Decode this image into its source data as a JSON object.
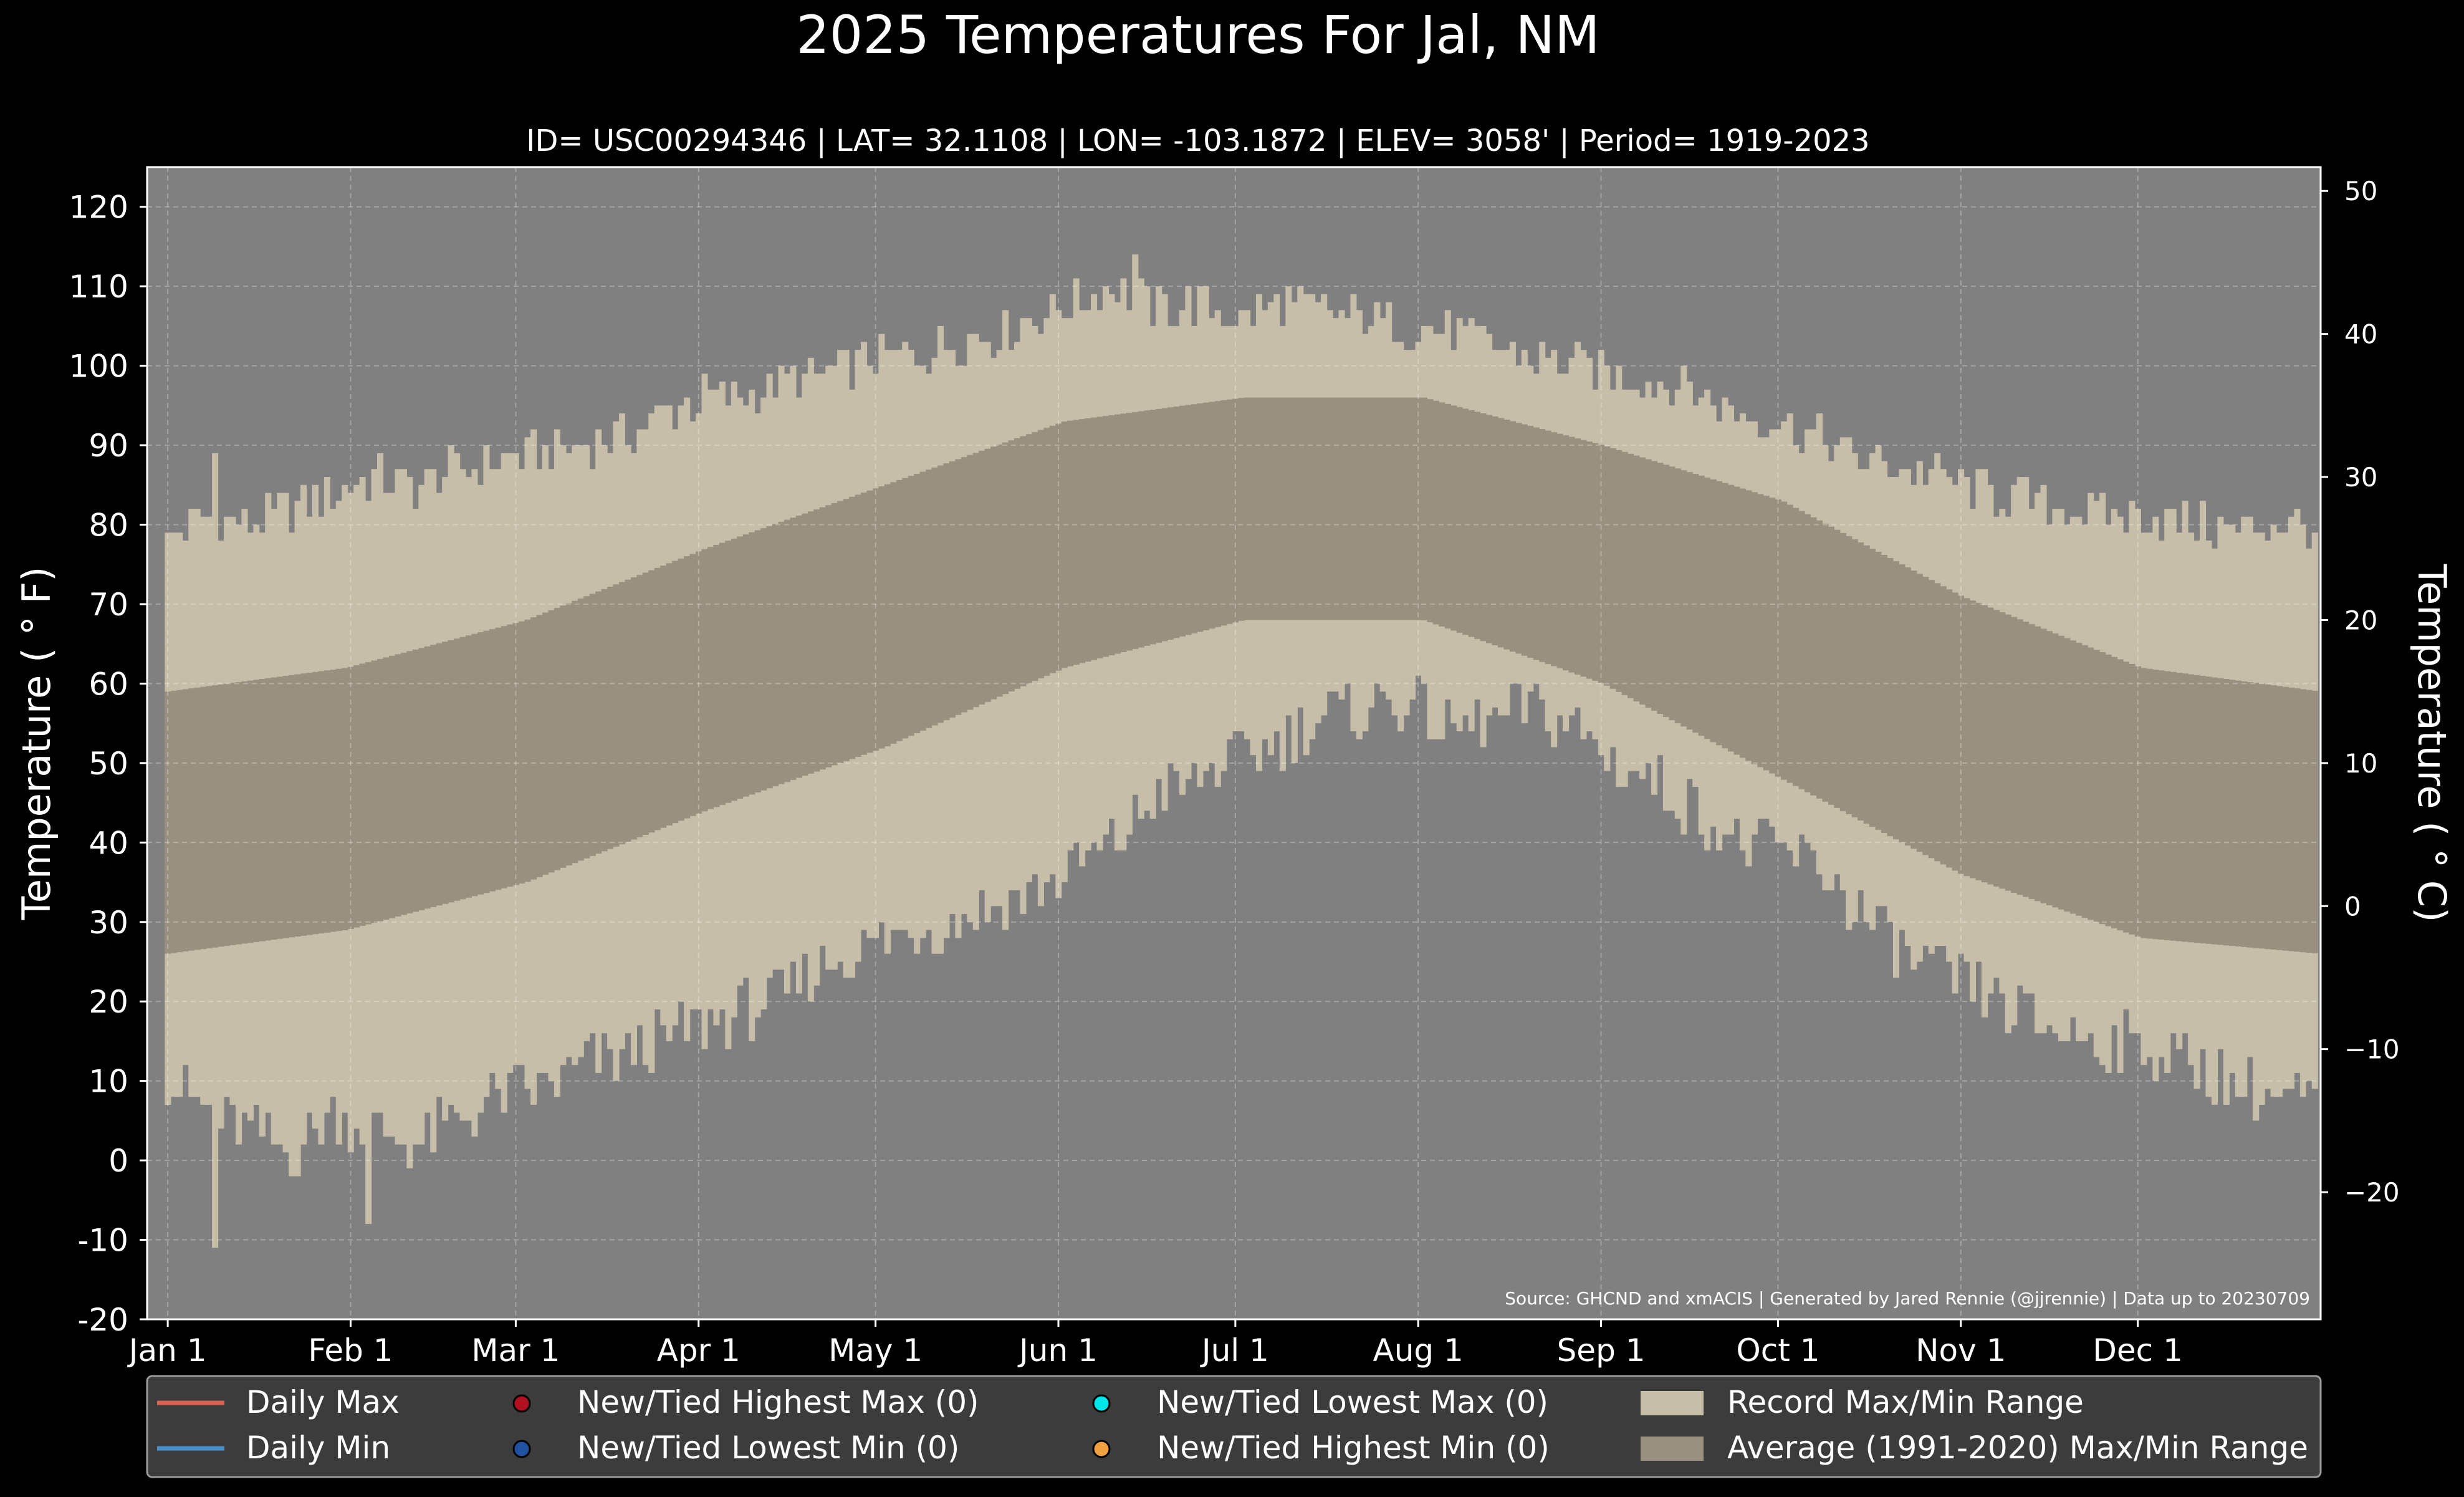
{
  "chart_data": {
    "type": "bar",
    "title": "2025 Temperatures For Jal, NM",
    "subtitle": "ID= USC00294346 | LAT= 32.1108 | LON= -103.1872 | ELEV= 3058' | Period= 1919-2023",
    "ylabel_left": "Temperature ( ° F)",
    "ylabel_right": "Temperature ( ° C)",
    "source": "Source: GHCND and xmACIS | Generated by Jared Rennie (@jjrennie) | Data up to 20230709",
    "ylim_f": [
      -20,
      125
    ],
    "xlim_day": [
      -2.5,
      366
    ],
    "grid": true,
    "yticks_f": [
      -20,
      -10,
      0,
      10,
      20,
      30,
      40,
      50,
      60,
      70,
      80,
      90,
      100,
      110,
      120
    ],
    "yticks_c": [
      -20,
      -10,
      0,
      10,
      20,
      30,
      40,
      50
    ],
    "xticks": [
      {
        "label": "Jan 1",
        "day": 1
      },
      {
        "label": "Feb 1",
        "day": 32
      },
      {
        "label": "Mar 1",
        "day": 60
      },
      {
        "label": "Apr 1",
        "day": 91
      },
      {
        "label": "May 1",
        "day": 121
      },
      {
        "label": "Jun 1",
        "day": 152
      },
      {
        "label": "Jul 1",
        "day": 182
      },
      {
        "label": "Aug 1",
        "day": 213
      },
      {
        "label": "Sep 1",
        "day": 244
      },
      {
        "label": "Oct 1",
        "day": 274
      },
      {
        "label": "Nov 1",
        "day": 305
      },
      {
        "label": "Dec 1",
        "day": 335
      }
    ],
    "colors": {
      "plot_bg": "#808080",
      "record_range": "#c6bea8",
      "average_range": "#999080",
      "daily_max": "#d9634e",
      "daily_min": "#4a90c8",
      "new_high_max": "#b01020",
      "new_low_min": "#2050a0",
      "new_low_max": "#00e5e5",
      "new_high_min": "#f0a040",
      "legend_bg": "#3c3c3c"
    },
    "record_max_weekly": [
      78,
      81,
      80,
      82,
      84,
      86,
      85,
      87,
      88,
      89,
      90,
      91,
      94,
      96,
      96,
      98,
      99,
      101,
      101,
      103,
      104,
      106,
      108,
      110,
      107,
      108,
      106,
      108,
      107,
      106,
      105,
      104,
      103,
      101,
      100,
      99,
      98,
      97,
      94,
      93,
      91,
      88,
      87,
      86,
      84,
      83,
      82,
      81,
      81,
      80,
      79,
      80,
      80,
      78
    ],
    "record_min_weekly": [
      10,
      6,
      4,
      1,
      6,
      4,
      2,
      5,
      8,
      9,
      12,
      13,
      15,
      17,
      19,
      21,
      25,
      27,
      29,
      30,
      32,
      34,
      37,
      40,
      46,
      48,
      51,
      53,
      56,
      57,
      58,
      54,
      55,
      57,
      55,
      50,
      48,
      44,
      40,
      39,
      37,
      31,
      26,
      23,
      21,
      18,
      16,
      15,
      14,
      12,
      10,
      8,
      8,
      10
    ],
    "record_max_spikes": [
      {
        "day": 9,
        "value": 89
      },
      {
        "day": 165,
        "value": 114
      }
    ],
    "record_min_spikes": [
      {
        "day": 9,
        "value": -11
      },
      {
        "day": 35,
        "value": -8
      }
    ],
    "avg_max_monthly": [
      59,
      62,
      68,
      77,
      85,
      93,
      96,
      96,
      90,
      83,
      71,
      62,
      59
    ],
    "avg_min_monthly": [
      26,
      29,
      35,
      44,
      52,
      62,
      68,
      68,
      60,
      48,
      36,
      28,
      26
    ]
  },
  "legend": {
    "daily_max": "Daily Max",
    "daily_min": "Daily Min",
    "new_high_max": "New/Tied Highest Max (0)",
    "new_low_min": "New/Tied Lowest Min (0)",
    "new_low_max": "New/Tied Lowest Max (0)",
    "new_high_min": "New/Tied Highest Min (0)",
    "record_range": "Record Max/Min Range",
    "average_range": "Average (1991-2020) Max/Min Range"
  }
}
